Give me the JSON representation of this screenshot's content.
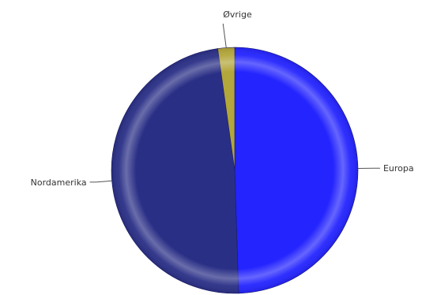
{
  "chart_data": {
    "type": "pie",
    "title": "",
    "legend": "none",
    "slices": [
      {
        "label": "Europa",
        "value": 49.5,
        "color": "#2424ff"
      },
      {
        "label": "Nordamerika",
        "value": 48.3,
        "color": "#2a2f86"
      },
      {
        "label": "Øvrige",
        "value": 2.2,
        "color": "#b3a63a"
      }
    ]
  }
}
